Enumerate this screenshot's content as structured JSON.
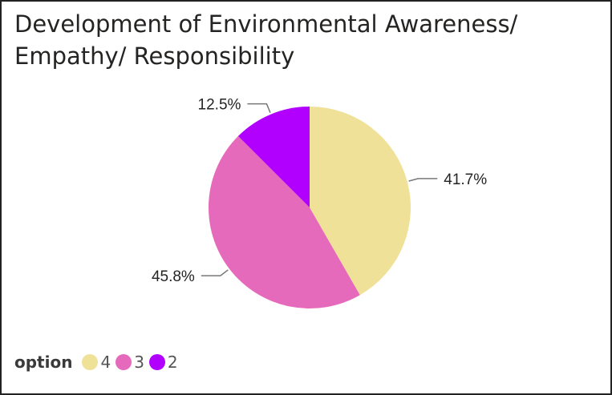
{
  "chart_data": {
    "type": "pie",
    "title": "Development of Environmental Awareness/ Empathy/ Responsibility",
    "legend_title": "option",
    "legend_position": "bottom-left",
    "slices": [
      {
        "label": "4",
        "value": 41.7,
        "display": "41.7%",
        "color": "#F0E199"
      },
      {
        "label": "3",
        "value": 45.8,
        "display": "45.8%",
        "color": "#E66ABB"
      },
      {
        "label": "2",
        "value": 12.5,
        "display": "12.5%",
        "color": "#B200FF"
      }
    ]
  }
}
